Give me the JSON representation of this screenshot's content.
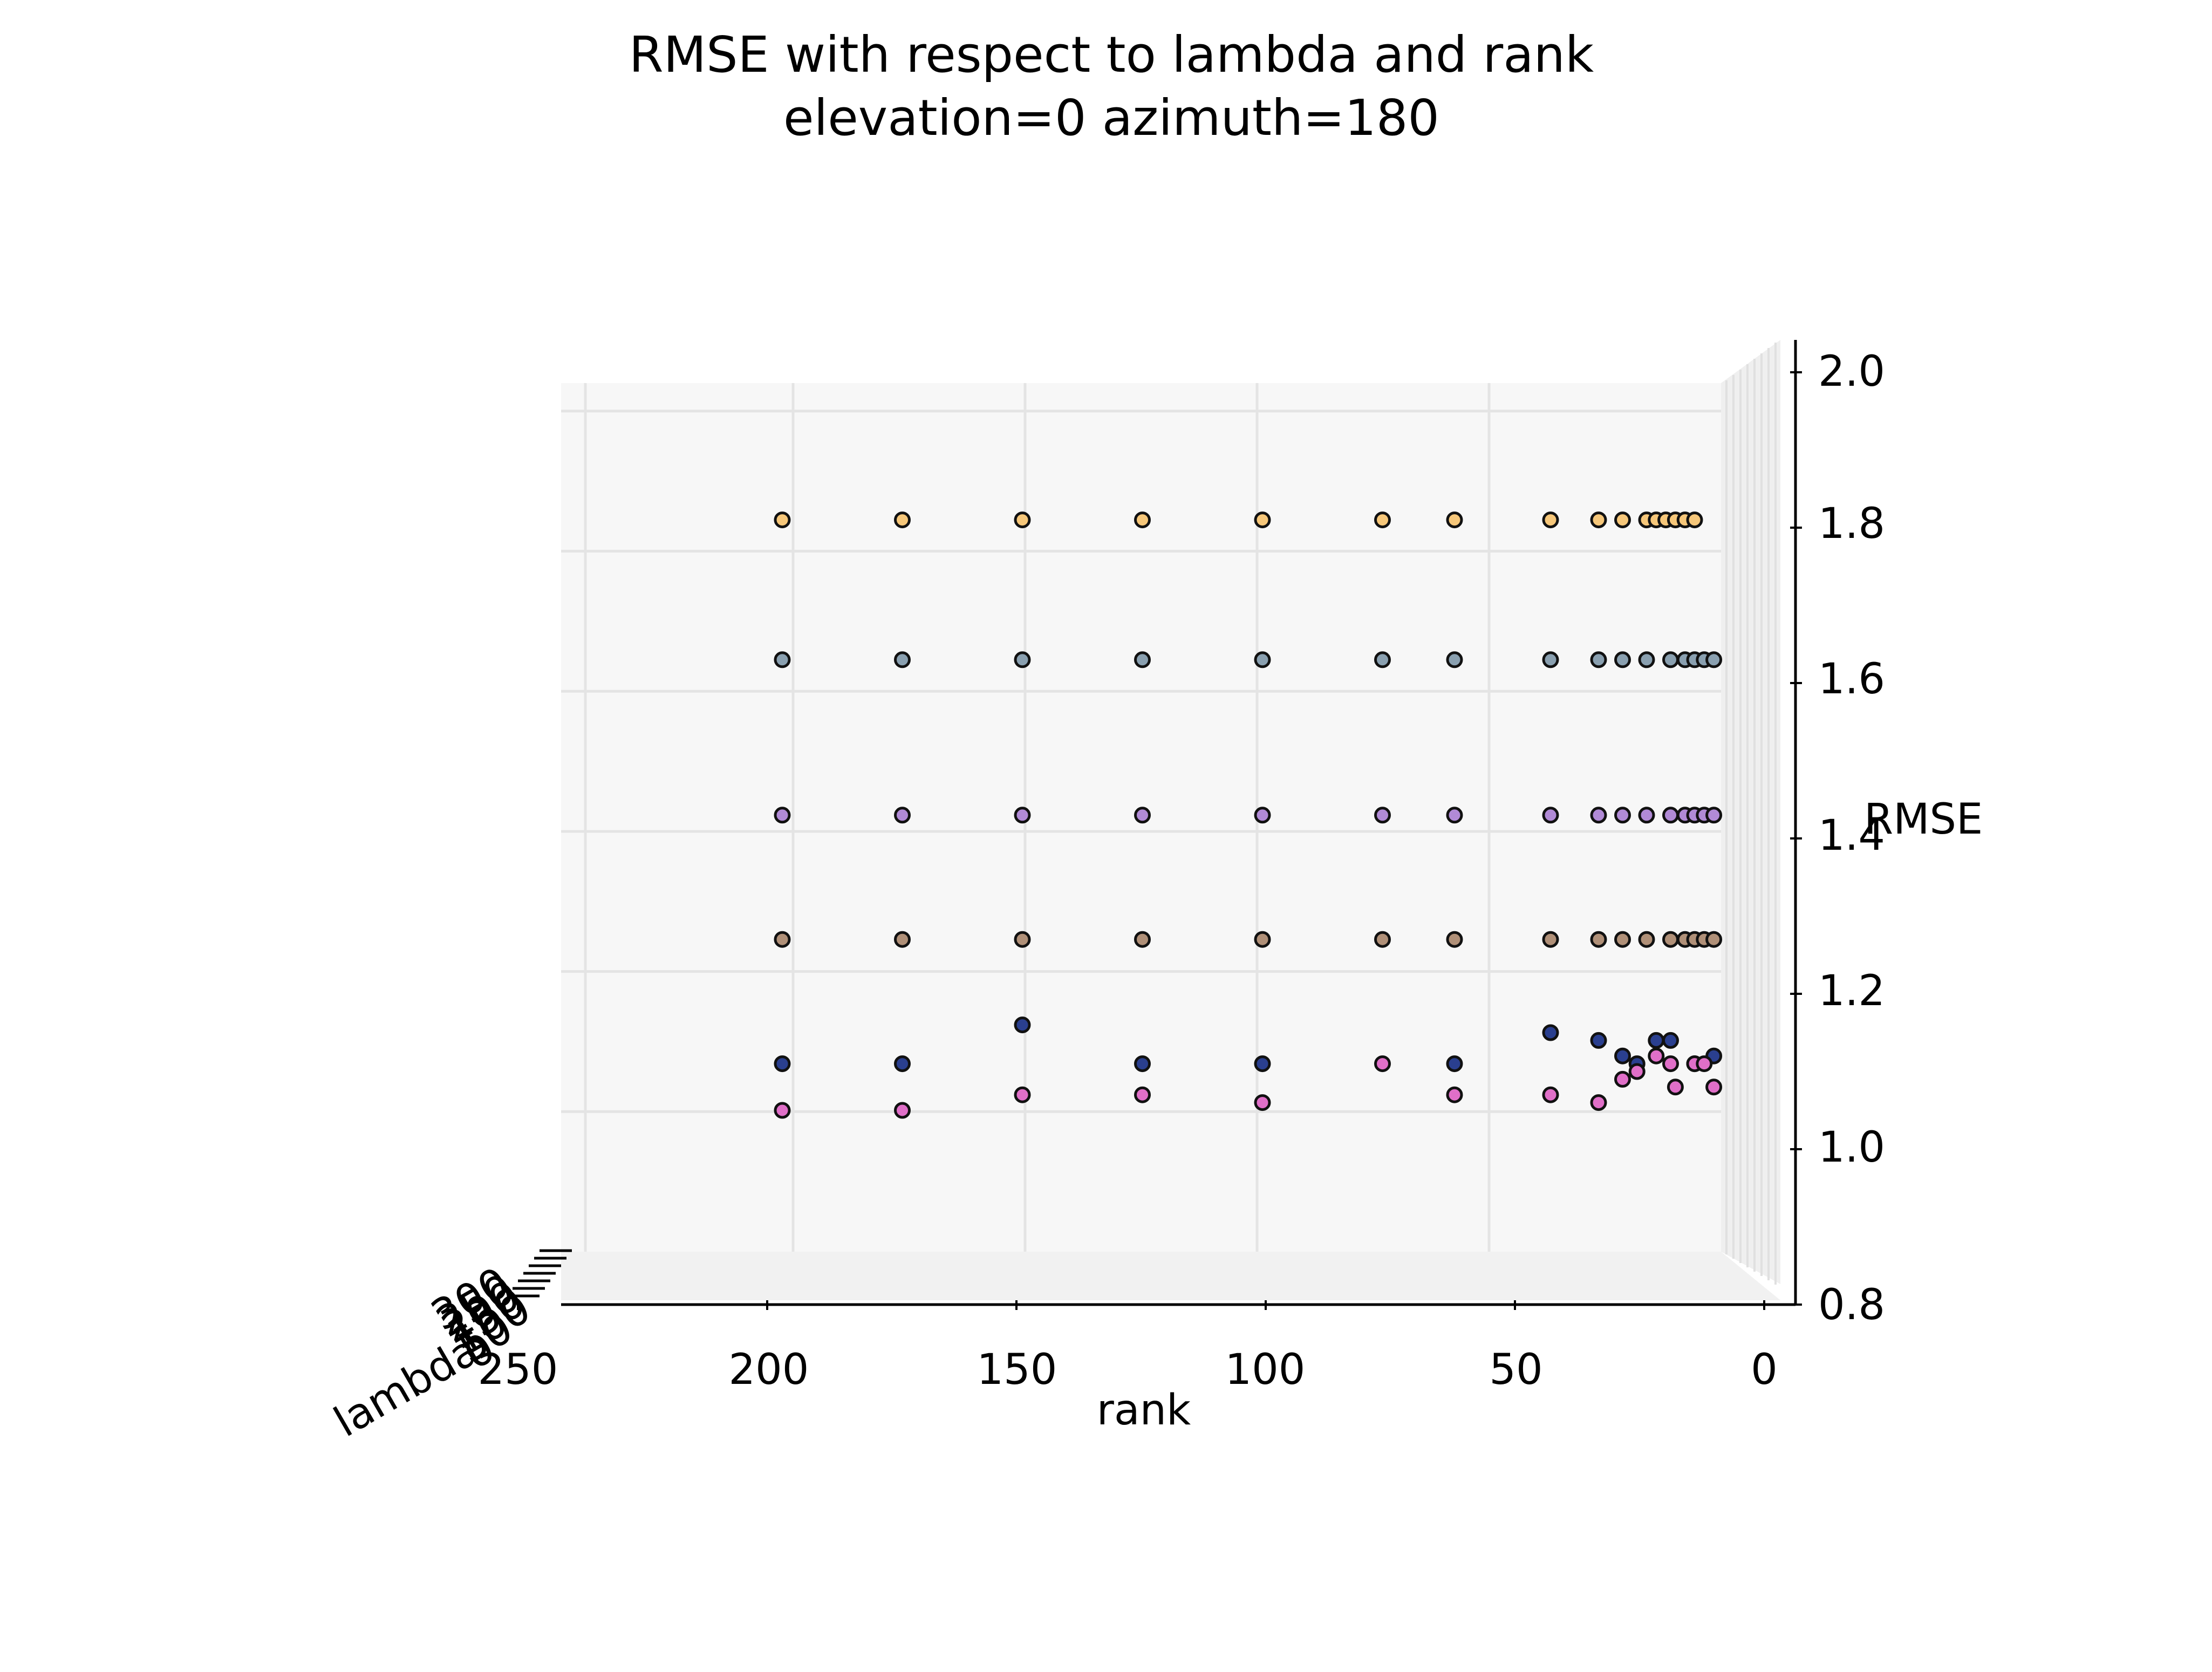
{
  "chart_data": {
    "type": "scatter",
    "title": "RMSE with respect to lambda and rank",
    "subtitle": "elevation=0  azimuth=180",
    "xlabel": "rank",
    "ylabel": "RMSE",
    "zlabel": "lambda",
    "xlim": [
      250,
      0
    ],
    "ylim": [
      0.8,
      2.0
    ],
    "xticks": [
      "250",
      "200",
      "150",
      "100",
      "50",
      "0"
    ],
    "yticks": [
      "0.8",
      "1.0",
      "1.2",
      "1.4",
      "1.6",
      "1.8",
      "2.0"
    ],
    "lambda_tick_labels": [
      "0",
      "50",
      "100",
      "150",
      "200",
      "250",
      "300"
    ],
    "grid": true,
    "series": [
      {
        "color": "#f6c77a",
        "points": [
          {
            "x": 200,
            "y": 1.81
          },
          {
            "x": 175,
            "y": 1.81
          },
          {
            "x": 150,
            "y": 1.81
          },
          {
            "x": 125,
            "y": 1.81
          },
          {
            "x": 100,
            "y": 1.81
          },
          {
            "x": 75,
            "y": 1.81
          },
          {
            "x": 60,
            "y": 1.81
          },
          {
            "x": 40,
            "y": 1.81
          },
          {
            "x": 30,
            "y": 1.81
          },
          {
            "x": 25,
            "y": 1.81
          },
          {
            "x": 20,
            "y": 1.81
          },
          {
            "x": 18,
            "y": 1.81
          },
          {
            "x": 16,
            "y": 1.81
          },
          {
            "x": 14,
            "y": 1.81
          },
          {
            "x": 12,
            "y": 1.81
          },
          {
            "x": 10,
            "y": 1.81
          }
        ]
      },
      {
        "color": "#8aa0b0",
        "points": [
          {
            "x": 200,
            "y": 1.63
          },
          {
            "x": 175,
            "y": 1.63
          },
          {
            "x": 150,
            "y": 1.63
          },
          {
            "x": 125,
            "y": 1.63
          },
          {
            "x": 100,
            "y": 1.63
          },
          {
            "x": 75,
            "y": 1.63
          },
          {
            "x": 60,
            "y": 1.63
          },
          {
            "x": 40,
            "y": 1.63
          },
          {
            "x": 30,
            "y": 1.63
          },
          {
            "x": 25,
            "y": 1.63
          },
          {
            "x": 20,
            "y": 1.63
          },
          {
            "x": 15,
            "y": 1.63
          },
          {
            "x": 12,
            "y": 1.63
          },
          {
            "x": 10,
            "y": 1.63
          },
          {
            "x": 8,
            "y": 1.63
          },
          {
            "x": 6,
            "y": 1.63
          }
        ]
      },
      {
        "color": "#b18ad6",
        "points": [
          {
            "x": 200,
            "y": 1.43
          },
          {
            "x": 175,
            "y": 1.43
          },
          {
            "x": 150,
            "y": 1.43
          },
          {
            "x": 125,
            "y": 1.43
          },
          {
            "x": 100,
            "y": 1.43
          },
          {
            "x": 75,
            "y": 1.43
          },
          {
            "x": 60,
            "y": 1.43
          },
          {
            "x": 40,
            "y": 1.43
          },
          {
            "x": 30,
            "y": 1.43
          },
          {
            "x": 25,
            "y": 1.43
          },
          {
            "x": 20,
            "y": 1.43
          },
          {
            "x": 15,
            "y": 1.43
          },
          {
            "x": 12,
            "y": 1.43
          },
          {
            "x": 10,
            "y": 1.43
          },
          {
            "x": 8,
            "y": 1.43
          },
          {
            "x": 6,
            "y": 1.43
          }
        ]
      },
      {
        "color": "#b09078",
        "points": [
          {
            "x": 200,
            "y": 1.27
          },
          {
            "x": 175,
            "y": 1.27
          },
          {
            "x": 150,
            "y": 1.27
          },
          {
            "x": 125,
            "y": 1.27
          },
          {
            "x": 100,
            "y": 1.27
          },
          {
            "x": 75,
            "y": 1.27
          },
          {
            "x": 60,
            "y": 1.27
          },
          {
            "x": 40,
            "y": 1.27
          },
          {
            "x": 30,
            "y": 1.27
          },
          {
            "x": 25,
            "y": 1.27
          },
          {
            "x": 20,
            "y": 1.27
          },
          {
            "x": 15,
            "y": 1.27
          },
          {
            "x": 12,
            "y": 1.27
          },
          {
            "x": 10,
            "y": 1.27
          },
          {
            "x": 8,
            "y": 1.27
          },
          {
            "x": 6,
            "y": 1.27
          }
        ]
      },
      {
        "color": "#2a3f8f",
        "points": [
          {
            "x": 200,
            "y": 1.11
          },
          {
            "x": 175,
            "y": 1.11
          },
          {
            "x": 150,
            "y": 1.16
          },
          {
            "x": 125,
            "y": 1.11
          },
          {
            "x": 100,
            "y": 1.11
          },
          {
            "x": 60,
            "y": 1.11
          },
          {
            "x": 40,
            "y": 1.15
          },
          {
            "x": 30,
            "y": 1.14
          },
          {
            "x": 25,
            "y": 1.12
          },
          {
            "x": 22,
            "y": 1.11
          },
          {
            "x": 18,
            "y": 1.14
          },
          {
            "x": 15,
            "y": 1.14
          },
          {
            "x": 10,
            "y": 1.11
          },
          {
            "x": 6,
            "y": 1.12
          }
        ]
      },
      {
        "color": "#e06fc8",
        "points": [
          {
            "x": 200,
            "y": 1.05
          },
          {
            "x": 175,
            "y": 1.05
          },
          {
            "x": 150,
            "y": 1.07
          },
          {
            "x": 125,
            "y": 1.07
          },
          {
            "x": 100,
            "y": 1.06
          },
          {
            "x": 75,
            "y": 1.11
          },
          {
            "x": 60,
            "y": 1.07
          },
          {
            "x": 40,
            "y": 1.07
          },
          {
            "x": 30,
            "y": 1.06
          },
          {
            "x": 25,
            "y": 1.09
          },
          {
            "x": 22,
            "y": 1.1
          },
          {
            "x": 18,
            "y": 1.12
          },
          {
            "x": 15,
            "y": 1.11
          },
          {
            "x": 14,
            "y": 1.08
          },
          {
            "x": 10,
            "y": 1.11
          },
          {
            "x": 8,
            "y": 1.11
          },
          {
            "x": 6,
            "y": 1.08
          }
        ]
      }
    ]
  }
}
